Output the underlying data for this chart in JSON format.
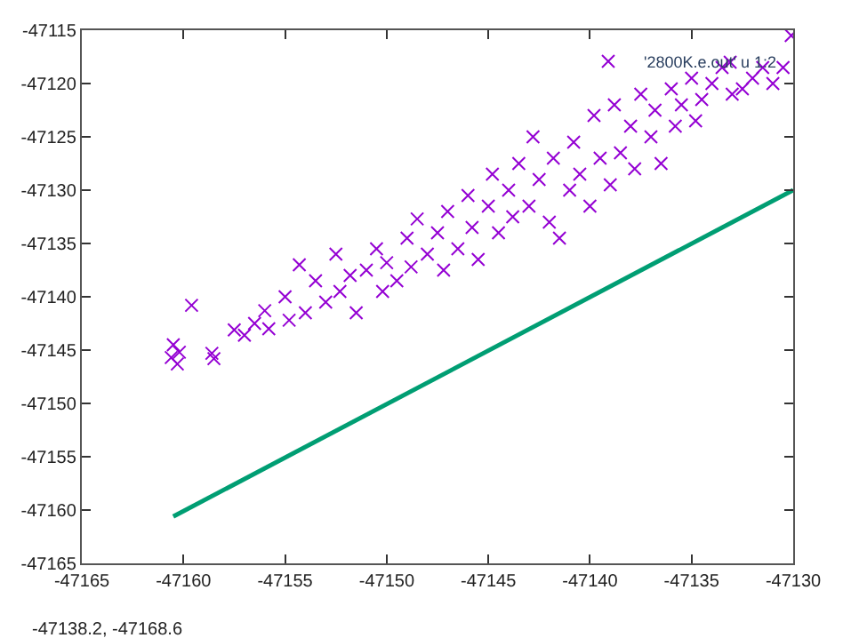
{
  "chart_data": {
    "type": "scatter",
    "xlim": [
      -47165,
      -47130
    ],
    "ylim": [
      -47165,
      -47115
    ],
    "xticks": [
      -47165,
      -47160,
      -47155,
      -47150,
      -47145,
      -47140,
      -47135,
      -47130
    ],
    "yticks": [
      -47165,
      -47160,
      -47155,
      -47150,
      -47145,
      -47140,
      -47135,
      -47130,
      -47125,
      -47120,
      -47115
    ],
    "legend": "top right",
    "annotations": [
      "-47138.2, -47168.6"
    ],
    "series": [
      {
        "name": "'2800K.e.out' u 1:2",
        "marker": "cross",
        "color": "#9400d3",
        "x": [
          -47160.5,
          -47160.6,
          -47160.3,
          -47160.2,
          -47159.6,
          -47158.6,
          -47158.5,
          -47157.5,
          -47157,
          -47156.5,
          -47156,
          -47155.8,
          -47155,
          -47154.8,
          -47154.3,
          -47154,
          -47153.5,
          -47153,
          -47152.5,
          -47152.3,
          -47151.8,
          -47151.5,
          -47151,
          -47150.5,
          -47150.2,
          -47150,
          -47149.5,
          -47149,
          -47148.8,
          -47148.5,
          -47148,
          -47147.5,
          -47147.2,
          -47147,
          -47146.5,
          -47146,
          -47145.8,
          -47145.5,
          -47145,
          -47144.8,
          -47144.5,
          -47144,
          -47143.8,
          -47143.5,
          -47143,
          -47142.8,
          -47142.5,
          -47142,
          -47141.8,
          -47141.5,
          -47141,
          -47140.8,
          -47140.5,
          -47140,
          -47139.8,
          -47139.5,
          -47139,
          -47138.8,
          -47138.5,
          -47138,
          -47137.8,
          -47137.5,
          -47137,
          -47136.8,
          -47136.5,
          -47136,
          -47135.8,
          -47135.5,
          -47135,
          -47134.8,
          -47134.5,
          -47134,
          -47133.5,
          -47133.1,
          -47133,
          -47132.5,
          -47132,
          -47131.5,
          -47131,
          -47130.5,
          -47130.1
        ],
        "values": [
          -47144.5,
          -47145.7,
          -47146.3,
          -47145.2,
          -47140.8,
          -47145.3,
          -47145.8,
          -47143.1,
          -47143.6,
          -47142.5,
          -47141.3,
          -47143.0,
          -47140.0,
          -47142.2,
          -47137.0,
          -47141.5,
          -47138.5,
          -47140.5,
          -47136.0,
          -47139.5,
          -47138.0,
          -47141.5,
          -47137.5,
          -47135.5,
          -47139.5,
          -47136.8,
          -47138.5,
          -47134.5,
          -47137.2,
          -47132.7,
          -47136.0,
          -47134.0,
          -47137.5,
          -47132.0,
          -47135.5,
          -47130.5,
          -47133.5,
          -47136.5,
          -47131.5,
          -47128.5,
          -47134.0,
          -47130.0,
          -47132.5,
          -47127.5,
          -47131.5,
          -47125.0,
          -47129.0,
          -47133.0,
          -47127.0,
          -47134.5,
          -47130.0,
          -47125.5,
          -47128.5,
          -47131.5,
          -47123.0,
          -47127.0,
          -47129.5,
          -47122.0,
          -47126.5,
          -47124.0,
          -47128.0,
          -47121.0,
          -47125.0,
          -47122.5,
          -47127.5,
          -47120.5,
          -47124.0,
          -47122.0,
          -47119.5,
          -47123.5,
          -47121.5,
          -47120.0,
          -47118.5,
          -47118.0,
          -47121.0,
          -47120.5,
          -47119.5,
          -47118.5,
          -47120.0,
          -47118.5,
          -47115.5
        ]
      },
      {
        "type": "line",
        "color": "#009e73",
        "x": [
          -47160.5,
          -47130
        ],
        "values": [
          -47160.6,
          -47130
        ]
      }
    ]
  }
}
